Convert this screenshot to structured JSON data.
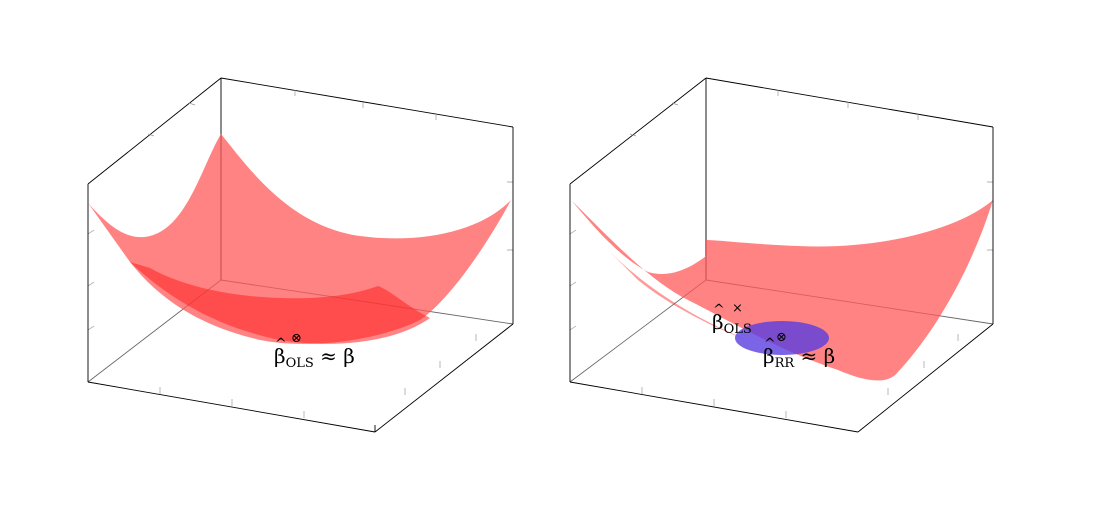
{
  "figure": {
    "left": {
      "label_symbol": "β",
      "label_subscript": "OLS",
      "label_rest": "≈ β",
      "marker": "⊗"
    },
    "right": {
      "ols_label_symbol": "β",
      "ols_label_subscript": "OLS",
      "ols_marker": "×",
      "rr_label_symbol": "β",
      "rr_label_subscript": "RR",
      "rr_label_rest": "≈ β",
      "rr_marker": "⊗"
    },
    "colors": {
      "surface": "#ff5a5a",
      "surface_dark": "#ff2020",
      "constraint": "#5a3de0",
      "box_edges": "#000000",
      "ticks": "#9a9a9a"
    }
  }
}
